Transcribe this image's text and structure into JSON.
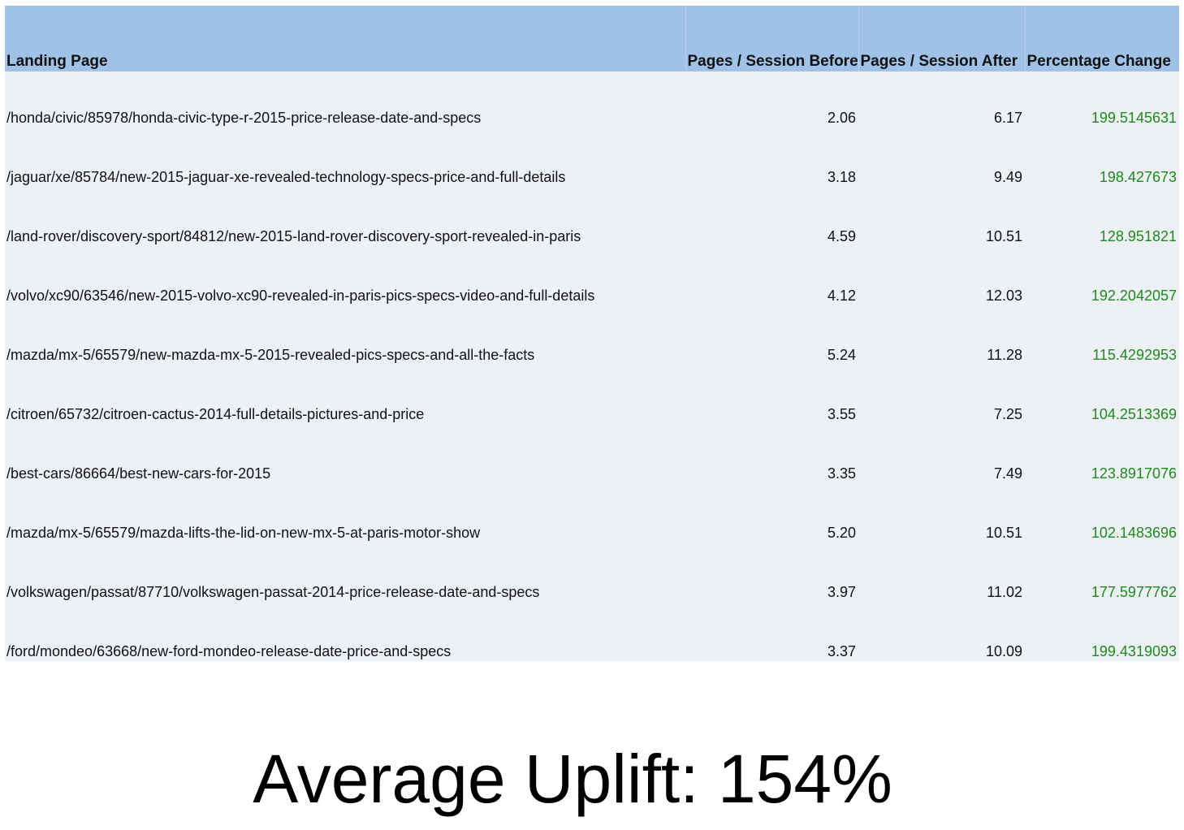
{
  "chart_data": {
    "type": "table",
    "columns": [
      "Landing Page",
      "Pages / Session Before",
      "Pages / Session After",
      "Percentage Change"
    ],
    "rows": [
      [
        "/honda/civic/85978/honda-civic-type-r-2015-price-release-date-and-specs",
        "2.06",
        "6.17",
        "199.5145631"
      ],
      [
        "/jaguar/xe/85784/new-2015-jaguar-xe-revealed-technology-specs-price-and-full-details",
        "3.18",
        "9.49",
        "198.427673"
      ],
      [
        "/land-rover/discovery-sport/84812/new-2015-land-rover-discovery-sport-revealed-in-paris",
        "4.59",
        "10.51",
        "128.951821"
      ],
      [
        "/volvo/xc90/63546/new-2015-volvo-xc90-revealed-in-paris-pics-specs-video-and-full-details",
        "4.12",
        "12.03",
        "192.2042057"
      ],
      [
        "/mazda/mx-5/65579/new-mazda-mx-5-2015-revealed-pics-specs-and-all-the-facts",
        "5.24",
        "11.28",
        "115.4292953"
      ],
      [
        "/citroen/65732/citroen-cactus-2014-full-details-pictures-and-price",
        "3.55",
        "7.25",
        "104.2513369"
      ],
      [
        "/best-cars/86664/best-new-cars-for-2015",
        "3.35",
        "7.49",
        "123.8917076"
      ],
      [
        "/mazda/mx-5/65579/mazda-lifts-the-lid-on-new-mx-5-at-paris-motor-show",
        "5.20",
        "10.51",
        "102.1483696"
      ],
      [
        "/volkswagen/passat/87710/volkswagen-passat-2014-price-release-date-and-specs",
        "3.97",
        "11.02",
        "177.5977762"
      ],
      [
        "/ford/mondeo/63668/new-ford-mondeo-release-date-price-and-specs",
        "3.37",
        "10.09",
        "199.4319093"
      ]
    ],
    "colors": {
      "header_background": "#a0c2e6",
      "row_background": "#edf0f5",
      "percentage_text": "#1e8a1e"
    }
  },
  "summary": {
    "text": "Average Uplift: 154%"
  }
}
